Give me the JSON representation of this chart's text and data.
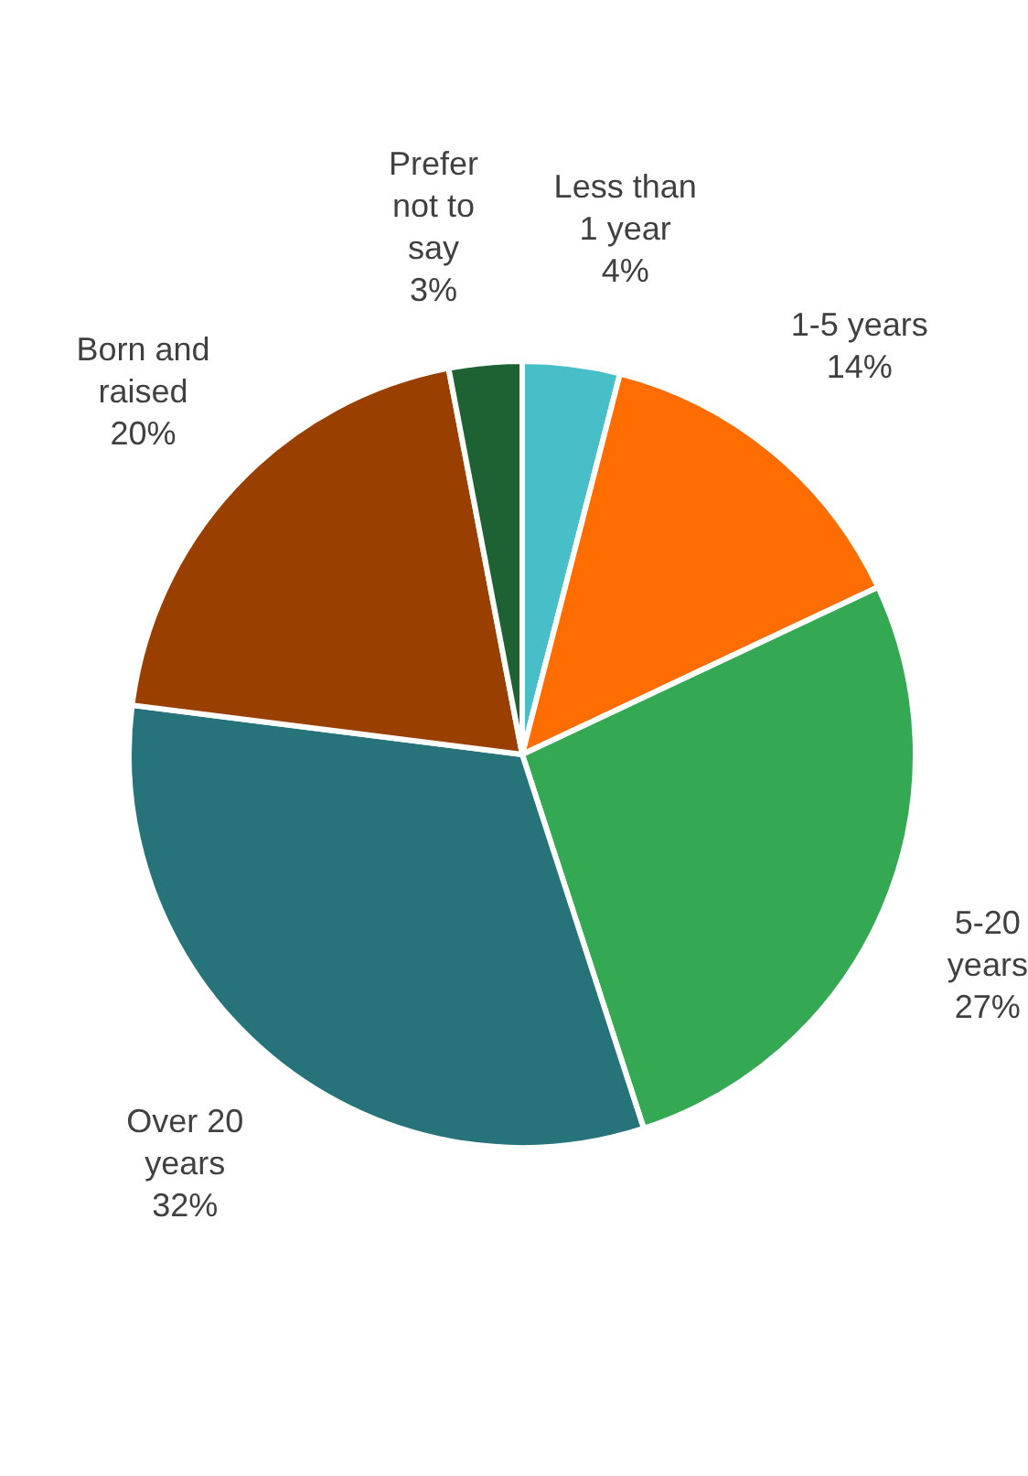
{
  "chart_data": {
    "type": "pie",
    "categories": [
      "Less than 1 year",
      "1-5 years",
      "5-20 years",
      "Over 20 years",
      "Born and raised",
      "Prefer not to say"
    ],
    "values": [
      4,
      14,
      27,
      32,
      20,
      3
    ],
    "value_labels": [
      "4%",
      "14%",
      "27%",
      "32%",
      "20%",
      "3%"
    ],
    "colors": [
      "#48bec8",
      "#ff6d00",
      "#34a853",
      "#26737a",
      "#994000",
      "#1e6233"
    ]
  }
}
